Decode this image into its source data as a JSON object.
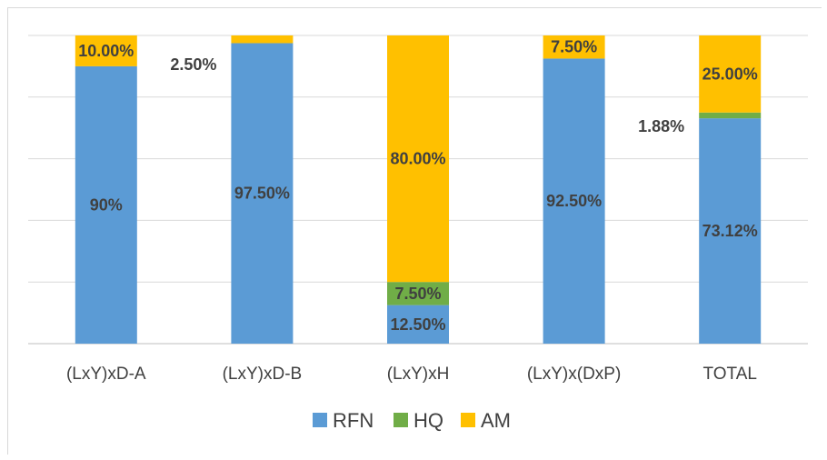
{
  "chart_data": {
    "type": "bar",
    "stacked": true,
    "title": "",
    "xlabel": "",
    "ylabel": "",
    "ylim": [
      0,
      1
    ],
    "grid": true,
    "legend_position": "bottom",
    "categories": [
      "(LxY)xD-A",
      "(LxY)xD-B",
      "(LxY)xH",
      "(LxY)x(DxP)",
      "TOTAL"
    ],
    "series": [
      {
        "name": "RFN",
        "color": "#5b9bd5",
        "values": [
          0.9,
          0.975,
          0.125,
          0.925,
          0.7312
        ]
      },
      {
        "name": "HQ",
        "color": "#70ad47",
        "values": [
          0.0,
          0.0,
          0.075,
          0.0,
          0.0188
        ]
      },
      {
        "name": "AM",
        "color": "#ffc000",
        "values": [
          0.1,
          0.025,
          0.8,
          0.075,
          0.25
        ]
      }
    ],
    "data_labels": [
      {
        "text": "90%",
        "category": 0,
        "series": 0
      },
      {
        "text": "10.00%",
        "category": 0,
        "series": 2
      },
      {
        "text": "2.50%",
        "category": 1,
        "series": 2,
        "outside": "left"
      },
      {
        "text": "97.50%",
        "category": 1,
        "series": 0
      },
      {
        "text": "80.00%",
        "category": 2,
        "series": 2
      },
      {
        "text": "7.50%",
        "category": 2,
        "series": 1
      },
      {
        "text": "12.50%",
        "category": 2,
        "series": 0
      },
      {
        "text": "7.50%",
        "category": 3,
        "series": 2
      },
      {
        "text": "92.50%",
        "category": 3,
        "series": 0
      },
      {
        "text": "25.00%",
        "category": 4,
        "series": 2
      },
      {
        "text": "1.88%",
        "category": 4,
        "series": 1,
        "outside": "left"
      },
      {
        "text": "73.12%",
        "category": 4,
        "series": 0
      }
    ]
  }
}
